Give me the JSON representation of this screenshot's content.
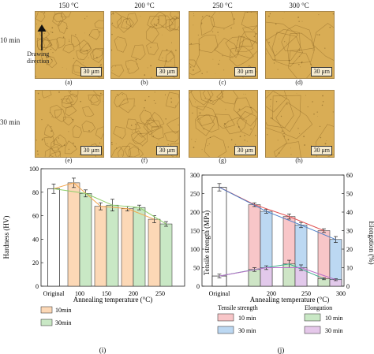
{
  "micrographs": {
    "column_headers": [
      "150 °C",
      "200 °C",
      "250 °C",
      "300 °C"
    ],
    "row_labels": [
      "10 min",
      "30 min"
    ],
    "drawing_label": "Drawing\ndirection",
    "scale_label": "30 μm",
    "captions": [
      "(a)",
      "(b)",
      "(c)",
      "(d)",
      "(e)",
      "(f)",
      "(g)",
      "(h)"
    ],
    "colors": {
      "background": "#d9ad55",
      "grain": "#8a6424"
    }
  },
  "chart_data": [
    {
      "type": "bar",
      "panel": "(i)",
      "xlabel": "Annealing temperature (°C)",
      "ylabel": "Hardness (HV)",
      "ylim": [
        0,
        100
      ],
      "yticks": [
        0,
        20,
        40,
        60,
        80,
        100
      ],
      "categories": [
        "Original",
        "100",
        "150",
        "200",
        "250"
      ],
      "original": {
        "value": 83,
        "error": 4
      },
      "series": [
        {
          "name": "10min",
          "color": "#fcd8b6",
          "values": [
            null,
            88,
            68,
            66,
            57
          ],
          "errors": [
            null,
            4,
            3,
            2,
            3
          ]
        },
        {
          "name": "30min",
          "color": "#c9e8c5",
          "values": [
            null,
            79,
            69,
            67,
            53
          ],
          "errors": [
            null,
            3,
            5,
            2,
            2
          ]
        }
      ],
      "legend": [
        "10min",
        "30min"
      ]
    },
    {
      "type": "bar",
      "panel": "(j)",
      "xlabel": "Annealing temperature (°C)",
      "ylabel": "Tensile strength (MPa)",
      "y2label": "Elongation (%)",
      "ylim": [
        0,
        300
      ],
      "yticks": [
        0,
        50,
        100,
        150,
        200,
        250,
        300
      ],
      "y2lim": [
        0,
        60
      ],
      "y2ticks": [
        0,
        10,
        20,
        30,
        40,
        50,
        60
      ],
      "categories": [
        "Original",
        "200",
        "250",
        "300"
      ],
      "original_strength": {
        "value": 267,
        "error": 10
      },
      "original_elongation": {
        "value": 5.5,
        "error": 1
      },
      "strength_series": [
        {
          "name": "10 min",
          "color": "#f8c6c8",
          "line": "#e05050",
          "values": [
            null,
            220,
            188,
            150
          ],
          "errors": [
            null,
            5,
            7,
            5
          ]
        },
        {
          "name": "30 min",
          "color": "#bcd8f2",
          "line": "#4c7fc8",
          "values": [
            null,
            202,
            165,
            126
          ],
          "errors": [
            null,
            5,
            7,
            8
          ]
        }
      ],
      "elongation_series": [
        {
          "name": "10 min",
          "color": "#c9e8c5",
          "line": "#3aa98a",
          "values": [
            null,
            9,
            12,
            4
          ],
          "errors": [
            null,
            1,
            2,
            0.5
          ]
        },
        {
          "name": "30 min",
          "color": "#e5c8ea",
          "line": "#b96ec8",
          "values": [
            null,
            10,
            10,
            3.5
          ],
          "errors": [
            null,
            1,
            1.5,
            0.5
          ]
        }
      ],
      "legend_headers": [
        "Tensile strength",
        "Elongation"
      ],
      "legend": [
        "10 min",
        "30 min",
        "10 min",
        "30 min"
      ]
    }
  ]
}
